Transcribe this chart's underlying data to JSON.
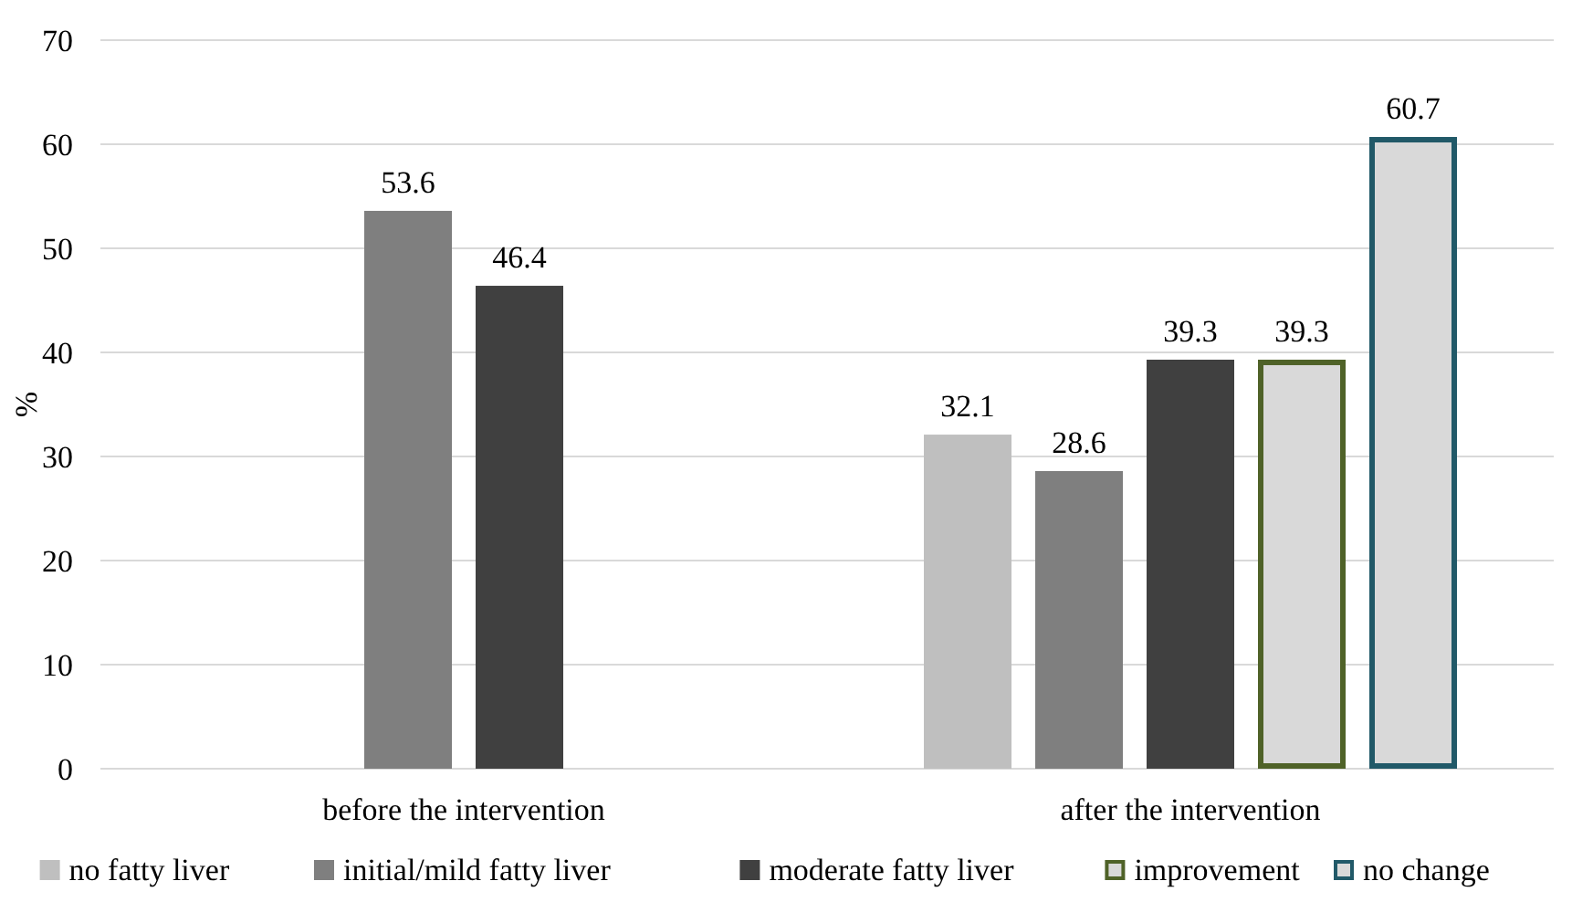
{
  "chart_data": {
    "type": "bar",
    "ylabel": "%",
    "categories": [
      "before the intervention",
      "after the intervention"
    ],
    "series": [
      {
        "name": "no fatty liver",
        "color": "#bfbfbf",
        "values": [
          null,
          32.1
        ]
      },
      {
        "name": "initial/mild fatty liver",
        "color": "#7f7f7f",
        "values": [
          53.6,
          28.6
        ]
      },
      {
        "name": "moderate fatty liver",
        "color": "#404040",
        "values": [
          46.4,
          39.3
        ]
      },
      {
        "name": "improvement",
        "color": "#4f6228",
        "values": [
          null,
          39.3
        ]
      },
      {
        "name": "no change",
        "color": "#215968",
        "values": [
          null,
          60.7
        ]
      }
    ],
    "ylim": [
      0,
      70
    ],
    "yticks": [
      0,
      10,
      20,
      30,
      40,
      50,
      60,
      70
    ],
    "grid": "y",
    "data_labels": true,
    "legend": "bottom"
  }
}
